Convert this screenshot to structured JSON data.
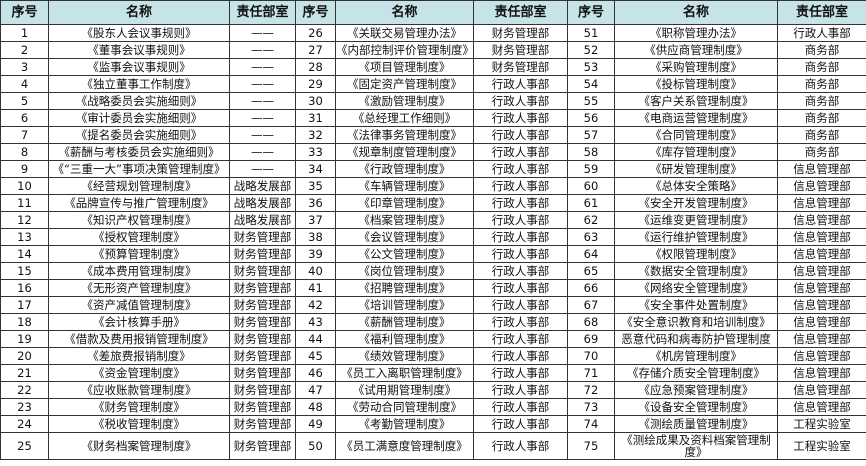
{
  "headers": [
    "序号",
    "名称",
    "责任部室",
    "序号",
    "名称",
    "责任部室",
    "序号",
    "名称",
    "责任部室"
  ],
  "rows": [
    [
      [
        "1",
        "《股东人会议事规则》",
        "——"
      ],
      [
        "26",
        "《关联交易管理办法》",
        "财务管理部"
      ],
      [
        "51",
        "《职称管理办法》",
        "行政人事部"
      ]
    ],
    [
      [
        "2",
        "《董事会议事规则》",
        "——"
      ],
      [
        "27",
        "《内部控制评价管理制度》",
        "财务管理部"
      ],
      [
        "52",
        "《供应商管理制度》",
        "商务部"
      ]
    ],
    [
      [
        "3",
        "《监事会议事规则》",
        "——"
      ],
      [
        "28",
        "《项目管理制度》",
        "财务管理部"
      ],
      [
        "53",
        "《采购管理制度》",
        "商务部"
      ]
    ],
    [
      [
        "4",
        "《独立董事工作制度》",
        "——"
      ],
      [
        "29",
        "《固定资产管理制度》",
        "行政人事部"
      ],
      [
        "54",
        "《投标管理制度》",
        "商务部"
      ]
    ],
    [
      [
        "5",
        "《战略委员会实施细则》",
        "——"
      ],
      [
        "30",
        "《激励管理制度》",
        "行政人事部"
      ],
      [
        "55",
        "《客户关系管理制度》",
        "商务部"
      ]
    ],
    [
      [
        "6",
        "《审计委员会实施细则》",
        "——"
      ],
      [
        "31",
        "《总经理工作细则》",
        "行政人事部"
      ],
      [
        "56",
        "《电商运营管理制度》",
        "商务部"
      ]
    ],
    [
      [
        "7",
        "《提名委员会实施细则》",
        "——"
      ],
      [
        "32",
        "《法律事务管理制度》",
        "行政人事部"
      ],
      [
        "57",
        "《合同管理制度》",
        "商务部"
      ]
    ],
    [
      [
        "8",
        "《薪酬与考核委员会实施细则》",
        "——"
      ],
      [
        "33",
        "《规章制度管理制度》",
        "行政人事部"
      ],
      [
        "58",
        "《库存管理制度》",
        "商务部"
      ]
    ],
    [
      [
        "9",
        "《“三重一大”事项决策管理制度》",
        "——"
      ],
      [
        "34",
        "《行政管理制度》",
        "行政人事部"
      ],
      [
        "59",
        "《研发管理制度》",
        "信息管理部"
      ]
    ],
    [
      [
        "10",
        "《经营规划管理制度》",
        "战略发展部"
      ],
      [
        "35",
        "《车辆管理制度》",
        "行政人事部"
      ],
      [
        "60",
        "《总体安全策略》",
        "信息管理部"
      ]
    ],
    [
      [
        "11",
        "《品牌宣传与推广管理制度》",
        "战略发展部"
      ],
      [
        "36",
        "《印章管理制度》",
        "行政人事部"
      ],
      [
        "61",
        "《安全开发管理制度》",
        "信息管理部"
      ]
    ],
    [
      [
        "12",
        "《知识产权管理制度》",
        "战略发展部"
      ],
      [
        "37",
        "《档案管理制度》",
        "行政人事部"
      ],
      [
        "62",
        "《运维变更管理制度》",
        "信息管理部"
      ]
    ],
    [
      [
        "13",
        "《授权管理制度》",
        "财务管理部"
      ],
      [
        "38",
        "《会议管理制度》",
        "行政人事部"
      ],
      [
        "63",
        "《运行维护管理制度》",
        "信息管理部"
      ]
    ],
    [
      [
        "14",
        "《预算管理制度》",
        "财务管理部"
      ],
      [
        "39",
        "《公文管理制度》",
        "行政人事部"
      ],
      [
        "64",
        "《权限管理制度》",
        "信息管理部"
      ]
    ],
    [
      [
        "15",
        "《成本费用管理制度》",
        "财务管理部"
      ],
      [
        "40",
        "《岗位管理制度》",
        "行政人事部"
      ],
      [
        "65",
        "《数据安全管理制度》",
        "信息管理部"
      ]
    ],
    [
      [
        "16",
        "《无形资产管理制度》",
        "财务管理部"
      ],
      [
        "41",
        "《招聘管理制度》",
        "行政人事部"
      ],
      [
        "66",
        "《网络安全管理制度》",
        "信息管理部"
      ]
    ],
    [
      [
        "17",
        "《资产减值管理制度》",
        "财务管理部"
      ],
      [
        "42",
        "《培训管理制度》",
        "行政人事部"
      ],
      [
        "67",
        "《安全事件处置制度》",
        "信息管理部"
      ]
    ],
    [
      [
        "18",
        "《会计核算手册》",
        "财务管理部"
      ],
      [
        "43",
        "《薪酬管理制度》",
        "行政人事部"
      ],
      [
        "68",
        "《安全意识教育和培训制度》",
        "信息管理部"
      ]
    ],
    [
      [
        "19",
        "《借款及费用报销管理制度》",
        "财务管理部"
      ],
      [
        "44",
        "《福利管理制度》",
        "行政人事部"
      ],
      [
        "69",
        "恶意代码和病毒防护管理制度",
        "信息管理部"
      ]
    ],
    [
      [
        "20",
        "《差旅费报销制度》",
        "财务管理部"
      ],
      [
        "45",
        "《绩效管理制度》",
        "行政人事部"
      ],
      [
        "70",
        "《机房管理制度》",
        "信息管理部"
      ]
    ],
    [
      [
        "21",
        "《资金管理制度》",
        "财务管理部"
      ],
      [
        "46",
        "《员工入离职管理制度》",
        "行政人事部"
      ],
      [
        "71",
        "《存储介质安全管理制度》",
        "信息管理部"
      ]
    ],
    [
      [
        "22",
        "《应收账款管理制度》",
        "财务管理部"
      ],
      [
        "47",
        "《试用期管理制度》",
        "行政人事部"
      ],
      [
        "72",
        "《应急预案管理制度》",
        "信息管理部"
      ]
    ],
    [
      [
        "23",
        "《财务管理制度》",
        "财务管理部"
      ],
      [
        "48",
        "《劳动合同管理制度》",
        "行政人事部"
      ],
      [
        "73",
        "《设备安全管理制度》",
        "信息管理部"
      ]
    ],
    [
      [
        "24",
        "《税收管理制度》",
        "财务管理部"
      ],
      [
        "49",
        "《考勤管理制度》",
        "行政人事部"
      ],
      [
        "74",
        "《测绘质量管理制度》",
        "工程实验室"
      ]
    ],
    [
      [
        "25",
        "《财务档案管理制度》",
        "财务管理部"
      ],
      [
        "50",
        "《员工满意度管理制度》",
        "行政人事部"
      ],
      [
        "75",
        "《测绘成果及资料档案管理制度》",
        "工程实验室"
      ]
    ]
  ],
  "colors": {
    "header_bg": "#c6e4e7",
    "border": "#333333"
  }
}
